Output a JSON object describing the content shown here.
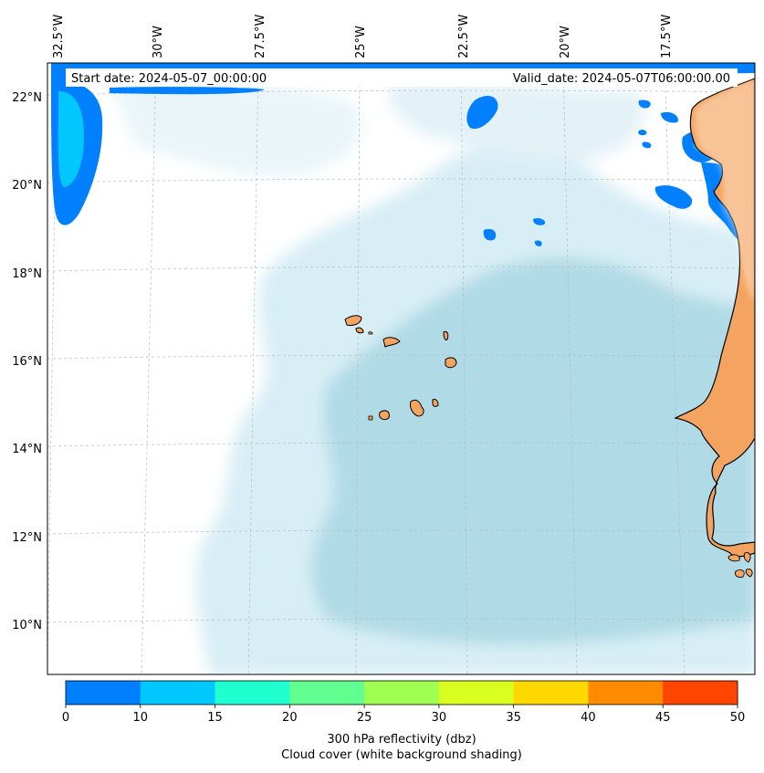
{
  "map": {
    "start_label": "Start date: 2024-05-07_00:00:00",
    "valid_label": "Valid_date: 2024-05-07T06:00:00.00",
    "lon_labels": [
      "32.5°W",
      "30°W",
      "27.5°W",
      "25°W",
      "22.5°W",
      "20°W",
      "17.5°W"
    ],
    "lat_labels": [
      "22°N",
      "20°N",
      "18°N",
      "16°N",
      "14°N",
      "12°N",
      "10°N"
    ],
    "land_color": "#f4a460",
    "ocean_cloud_color": "#b0dae6",
    "reflectivity_low_color": "#0080ff"
  },
  "colorbar": {
    "ticks": [
      "0",
      "10",
      "15",
      "20",
      "25",
      "30",
      "35",
      "40",
      "45",
      "50"
    ],
    "colors": [
      "#0080ff",
      "#00c8ff",
      "#20ffd0",
      "#60ff90",
      "#a0ff50",
      "#d8ff20",
      "#ffd800",
      "#ff8c00",
      "#ff4500"
    ],
    "label": "300 hPa reflectivity (dbz)",
    "sublabel": "Cloud cover (white background shading)"
  }
}
